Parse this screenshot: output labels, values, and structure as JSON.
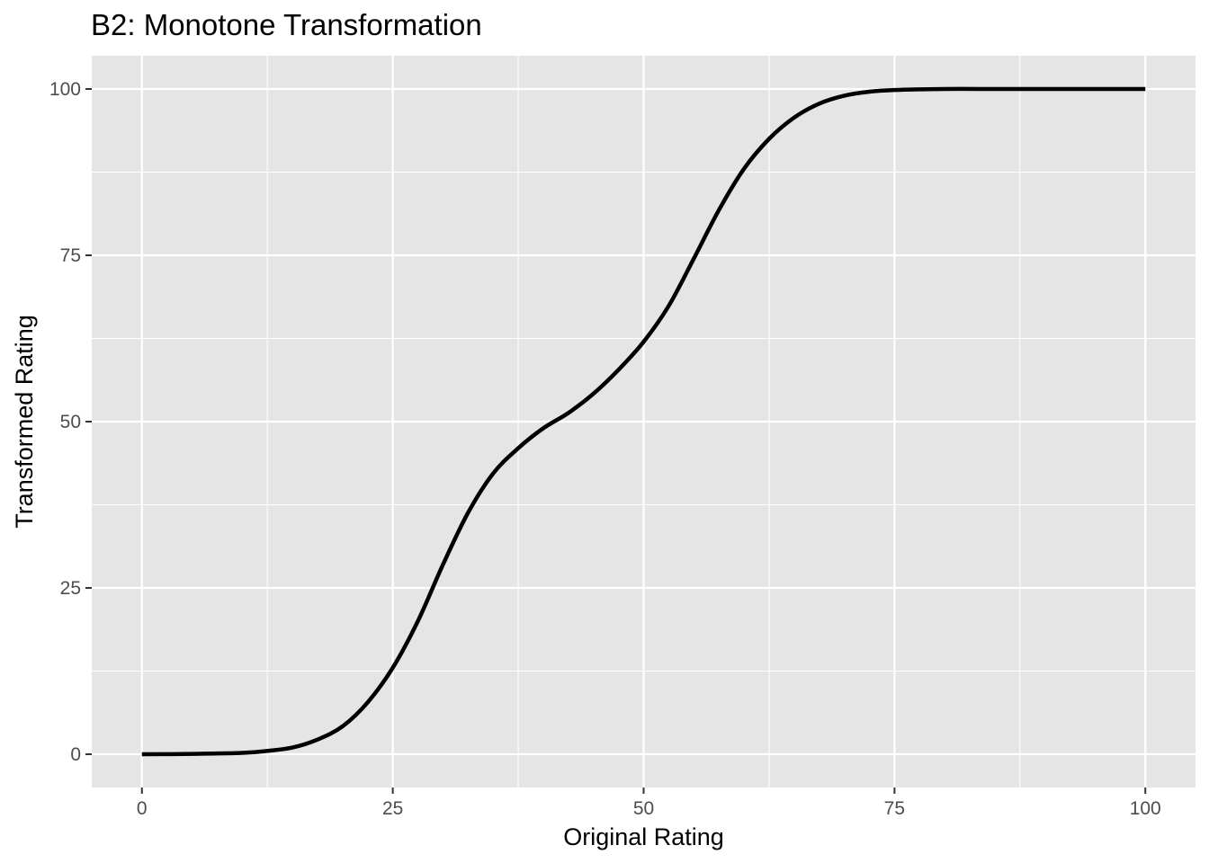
{
  "chart_data": {
    "type": "line",
    "title": "B2: Monotone Transformation",
    "xlabel": "Original Rating",
    "ylabel": "Transformed Rating",
    "xlim": [
      -5,
      105
    ],
    "ylim": [
      -5,
      105
    ],
    "x_ticks": [
      0,
      25,
      50,
      75,
      100
    ],
    "y_ticks": [
      0,
      25,
      50,
      75,
      100
    ],
    "x_tick_labels": [
      "0",
      "25",
      "50",
      "75",
      "100"
    ],
    "y_tick_labels": [
      "0",
      "25",
      "50",
      "75",
      "100"
    ],
    "grid": true,
    "panel_background": "#e5e5e5",
    "line_color": "#000000",
    "series": [
      {
        "x": [
          0,
          5,
          10,
          12.5,
          15,
          17.5,
          20,
          22.5,
          25,
          27.5,
          30,
          32.5,
          35,
          37.5,
          40,
          42.5,
          45,
          47.5,
          50,
          52.5,
          55,
          57.5,
          60,
          62.5,
          65,
          67.5,
          70,
          72.5,
          75,
          80,
          85,
          90,
          95,
          100
        ],
        "y": [
          0,
          0.05,
          0.2,
          0.5,
          1.0,
          2.2,
          4.2,
          7.8,
          13,
          20,
          28.5,
          36.3,
          42.2,
          46,
          49,
          51.3,
          54.2,
          57.8,
          62,
          67.4,
          74.5,
          81.8,
          88,
          92.5,
          95.7,
          97.8,
          99,
          99.6,
          99.85,
          100,
          100,
          100,
          100,
          100
        ]
      }
    ]
  }
}
